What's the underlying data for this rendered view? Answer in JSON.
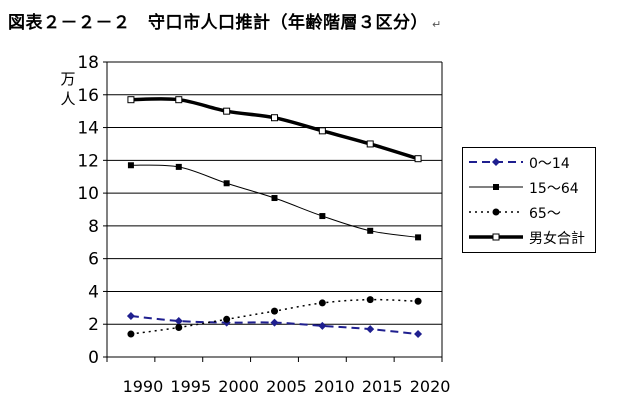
{
  "title": "図表２－２－２　守口市人口推計（年齢階層３区分）",
  "title_mark": "↵",
  "chart_data": {
    "type": "line",
    "title": "図表２－２－２　守口市人口推計（年齢階層３区分）",
    "ylabel": "万人",
    "xlabel": "",
    "categories": [
      "1990",
      "1995",
      "2000",
      "2005",
      "2010",
      "2015",
      "2020"
    ],
    "ylim": [
      0,
      18
    ],
    "yticks": [
      0,
      2,
      4,
      6,
      8,
      10,
      12,
      14,
      16,
      18
    ],
    "grid": "horizontal",
    "legend_position": "right",
    "series": [
      {
        "name": "0～14",
        "values": [
          2.5,
          2.2,
          2.1,
          2.1,
          1.9,
          1.7,
          1.4
        ],
        "color": "#1f1f8f",
        "style": "dashed",
        "marker": "diamond"
      },
      {
        "name": "15～64",
        "values": [
          11.7,
          11.6,
          10.6,
          9.7,
          8.6,
          7.7,
          7.3
        ],
        "color": "#000000",
        "style": "solid",
        "marker": "square"
      },
      {
        "name": "65～",
        "values": [
          1.4,
          1.8,
          2.3,
          2.8,
          3.3,
          3.5,
          3.4
        ],
        "color": "#000000",
        "style": "dotted",
        "marker": "circle"
      },
      {
        "name": "男女合計",
        "values": [
          15.7,
          15.7,
          15.0,
          14.6,
          13.8,
          13.0,
          12.1
        ],
        "color": "#000000",
        "style": "thick",
        "marker": "open-square"
      }
    ]
  }
}
